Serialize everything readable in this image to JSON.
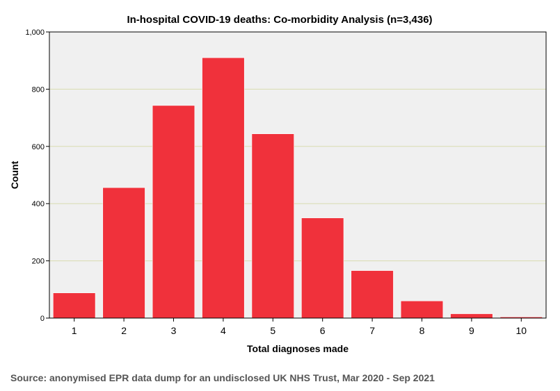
{
  "chart_data": {
    "type": "bar",
    "title": "In-hospital COVID-19 deaths: Co-morbidity Analysis (n=3,436)",
    "xlabel": "Total diagnoses made",
    "ylabel": "Count",
    "categories": [
      "1",
      "2",
      "3",
      "4",
      "5",
      "6",
      "7",
      "8",
      "9",
      "10"
    ],
    "values": [
      88,
      456,
      743,
      910,
      644,
      350,
      166,
      60,
      15,
      4
    ],
    "ylim": [
      0,
      1000
    ],
    "yticks": [
      0,
      200,
      400,
      600,
      800,
      1000
    ],
    "ytick_labels": [
      "0",
      "200",
      "400",
      "600",
      "800",
      "1,000"
    ],
    "grid": true,
    "bar_color": "#f0313b",
    "plot_background": "#f0f0f0",
    "grid_color": "#d8dcb0"
  },
  "source": "Source: anonymised EPR data dump for an undisclosed UK NHS Trust, Mar 2020 - Sep 2021"
}
